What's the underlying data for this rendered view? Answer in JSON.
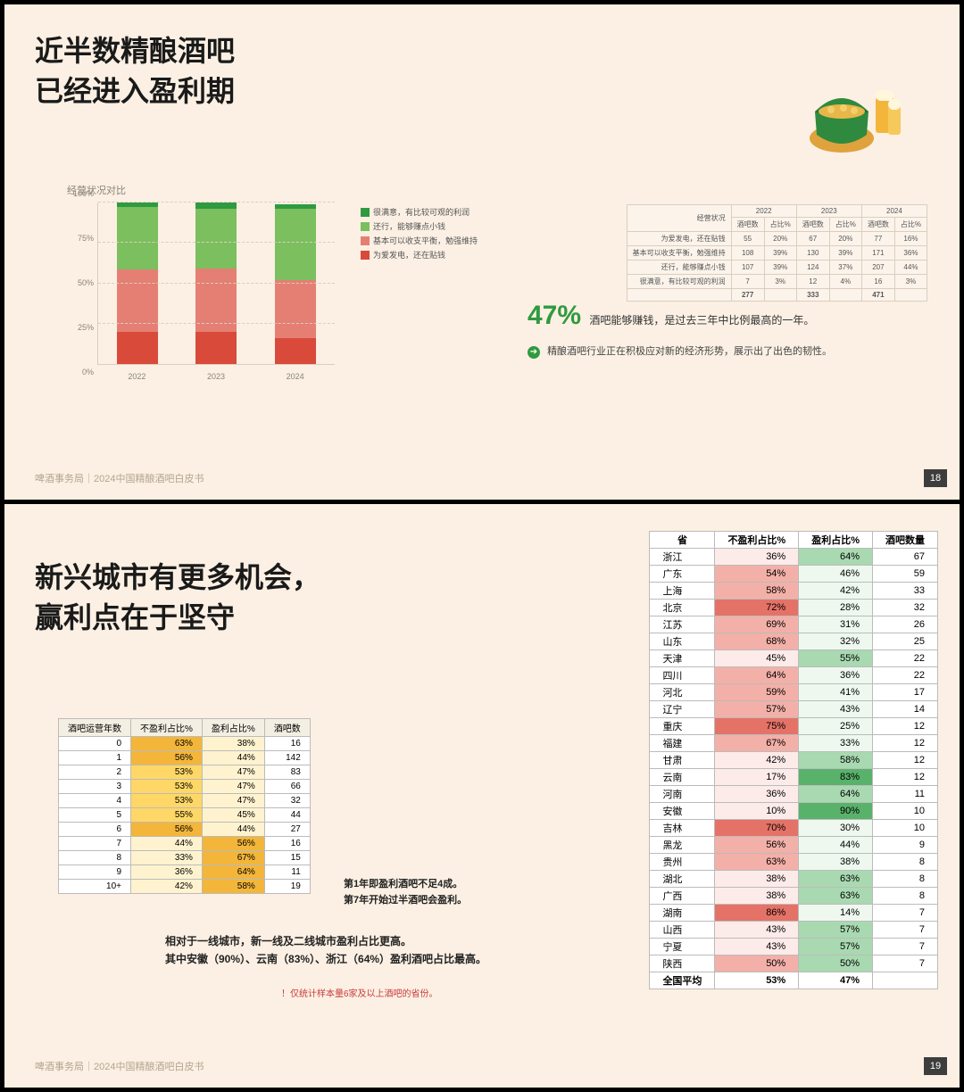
{
  "page1": {
    "title_l1": "近半数精酿酒吧",
    "title_l2": "已经进入盈利期",
    "chart_title": "经营状况对比",
    "chart": {
      "type": "stacked-bar-100",
      "categories": [
        "2022",
        "2023",
        "2024"
      ],
      "yticks": [
        "0%",
        "25%",
        "50%",
        "75%",
        "100%"
      ],
      "series": [
        {
          "name": "为爱发电，还在贴钱",
          "color": "#d94a3a",
          "values": [
            20,
            20,
            16
          ]
        },
        {
          "name": "基本可以收支平衡，勉强维持",
          "color": "#e57f74",
          "values": [
            39,
            39,
            36
          ]
        },
        {
          "name": "还行，能够赚点小钱",
          "color": "#7bbf5e",
          "values": [
            39,
            37,
            44
          ]
        },
        {
          "name": "很满意，有比较可观的利润",
          "color": "#2f9a3f",
          "values": [
            3,
            4,
            3
          ]
        }
      ]
    },
    "legend_order": [
      3,
      2,
      1,
      0
    ],
    "table": {
      "col_header_top": "经营状况",
      "year_groups": [
        "2022",
        "2023",
        "2024"
      ],
      "subheads": [
        "酒吧数",
        "占比%"
      ],
      "rows": [
        {
          "label": "为爱发电，还在贴钱",
          "cells": [
            "55",
            "20%",
            "67",
            "20%",
            "77",
            "16%"
          ]
        },
        {
          "label": "基本可以收支平衡，勉强维持",
          "cells": [
            "108",
            "39%",
            "130",
            "39%",
            "171",
            "36%"
          ]
        },
        {
          "label": "还行，能够赚点小钱",
          "cells": [
            "107",
            "39%",
            "124",
            "37%",
            "207",
            "44%"
          ]
        },
        {
          "label": "很满意，有比较可观的利润",
          "cells": [
            "7",
            "3%",
            "12",
            "4%",
            "16",
            "3%"
          ]
        }
      ],
      "totals": [
        "277",
        "",
        "333",
        "",
        "471",
        ""
      ]
    },
    "stat_pct": "47%",
    "stat_text": "酒吧能够赚钱，是过去三年中比例最高的一年。",
    "sub_text": "精酿酒吧行业正在积极应对新的经济形势，展示出了出色的韧性。",
    "footer": "啤酒事务局｜2024中国精酿酒吧白皮书",
    "pagenum": "18"
  },
  "page2": {
    "title_l1": "新兴城市有更多机会，",
    "title_l2": "赢利点在于坚守",
    "years_table": {
      "headers": [
        "酒吧运营年数",
        "不盈利占比%",
        "盈利占比%",
        "酒吧数"
      ],
      "heat_colors": {
        "low": "#fff3cf",
        "mid": "#ffd766",
        "high": "#f3b63a"
      },
      "rows": [
        [
          "0",
          "63%",
          "38%",
          "16"
        ],
        [
          "1",
          "56%",
          "44%",
          "142"
        ],
        [
          "2",
          "53%",
          "47%",
          "83"
        ],
        [
          "3",
          "53%",
          "47%",
          "66"
        ],
        [
          "4",
          "53%",
          "47%",
          "32"
        ],
        [
          "5",
          "55%",
          "45%",
          "44"
        ],
        [
          "6",
          "56%",
          "44%",
          "27"
        ],
        [
          "7",
          "44%",
          "56%",
          "16"
        ],
        [
          "8",
          "33%",
          "67%",
          "15"
        ],
        [
          "9",
          "36%",
          "64%",
          "11"
        ],
        [
          "10+",
          "42%",
          "58%",
          "19"
        ]
      ]
    },
    "note1_l1": "第1年即盈利酒吧不足4成。",
    "note1_l2": "第7年开始过半酒吧会盈利。",
    "note2_l1": "相对于一线城市，新一线及二线城市盈利占比更高。",
    "note2_l2": "其中安徽（90%）、云南（83%）、浙江（64%）盈利酒吧占比最高。",
    "note3": "！仅统计样本量6家及以上酒吧的省份。",
    "prov_table": {
      "headers": [
        "省",
        "不盈利占比%",
        "盈利占比%",
        "酒吧数量"
      ],
      "red_scale": {
        "low": "#fdebe9",
        "mid": "#f3b0a8",
        "high": "#e57267"
      },
      "green_scale": {
        "low": "#eef8ef",
        "mid": "#a9d9b1",
        "high": "#58b26a"
      },
      "rows": [
        [
          "浙江",
          36,
          64,
          67
        ],
        [
          "广东",
          54,
          46,
          59
        ],
        [
          "上海",
          58,
          42,
          33
        ],
        [
          "北京",
          72,
          28,
          32
        ],
        [
          "江苏",
          69,
          31,
          26
        ],
        [
          "山东",
          68,
          32,
          25
        ],
        [
          "天津",
          45,
          55,
          22
        ],
        [
          "四川",
          64,
          36,
          22
        ],
        [
          "河北",
          59,
          41,
          17
        ],
        [
          "辽宁",
          57,
          43,
          14
        ],
        [
          "重庆",
          75,
          25,
          12
        ],
        [
          "福建",
          67,
          33,
          12
        ],
        [
          "甘肃",
          42,
          58,
          12
        ],
        [
          "云南",
          17,
          83,
          12
        ],
        [
          "河南",
          36,
          64,
          11
        ],
        [
          "安徽",
          10,
          90,
          10
        ],
        [
          "吉林",
          70,
          30,
          10
        ],
        [
          "黑龙",
          56,
          44,
          9
        ],
        [
          "贵州",
          63,
          38,
          8
        ],
        [
          "湖北",
          38,
          63,
          8
        ],
        [
          "广西",
          38,
          63,
          8
        ],
        [
          "湖南",
          86,
          14,
          7
        ],
        [
          "山西",
          43,
          57,
          7
        ],
        [
          "宁夏",
          43,
          57,
          7
        ],
        [
          "陕西",
          50,
          50,
          7
        ]
      ],
      "avg": [
        "全国平均",
        "53%",
        "47%",
        ""
      ]
    },
    "footer": "啤酒事务局｜2024中国精酿酒吧白皮书",
    "pagenum": "19"
  }
}
